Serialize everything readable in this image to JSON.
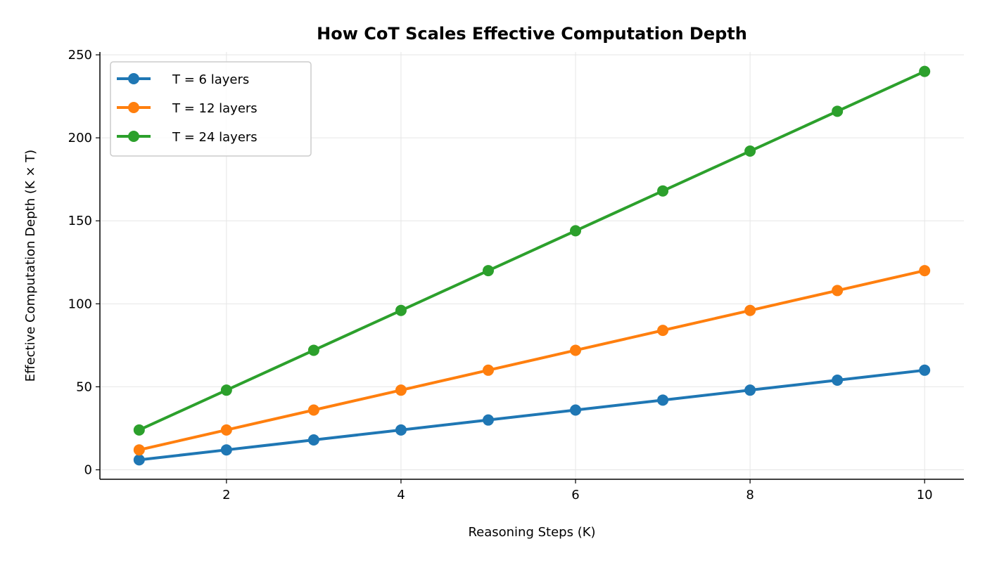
{
  "chart_data": {
    "type": "line",
    "title": "How CoT Scales Effective Computation Depth",
    "xlabel": "Reasoning Steps (K)",
    "ylabel": "Effective Computation Depth (K × T)",
    "x": [
      1,
      2,
      3,
      4,
      5,
      6,
      7,
      8,
      9,
      10
    ],
    "xlim": [
      0.55,
      10.45
    ],
    "ylim": [
      -5.7,
      251.7
    ],
    "xticks": [
      2,
      4,
      6,
      8,
      10
    ],
    "yticks": [
      0,
      50,
      100,
      150,
      200,
      250
    ],
    "grid": true,
    "legend_placement": "top-left",
    "series": [
      {
        "name": "T = 6 layers",
        "color": "#1f77b4",
        "values": [
          6,
          12,
          18,
          24,
          30,
          36,
          42,
          48,
          54,
          60
        ]
      },
      {
        "name": "T = 12 layers",
        "color": "#ff7f0e",
        "values": [
          12,
          24,
          36,
          48,
          60,
          72,
          84,
          96,
          108,
          120
        ]
      },
      {
        "name": "T = 24 layers",
        "color": "#2ca02c",
        "values": [
          24,
          48,
          72,
          96,
          120,
          144,
          168,
          192,
          216,
          240
        ]
      }
    ]
  }
}
